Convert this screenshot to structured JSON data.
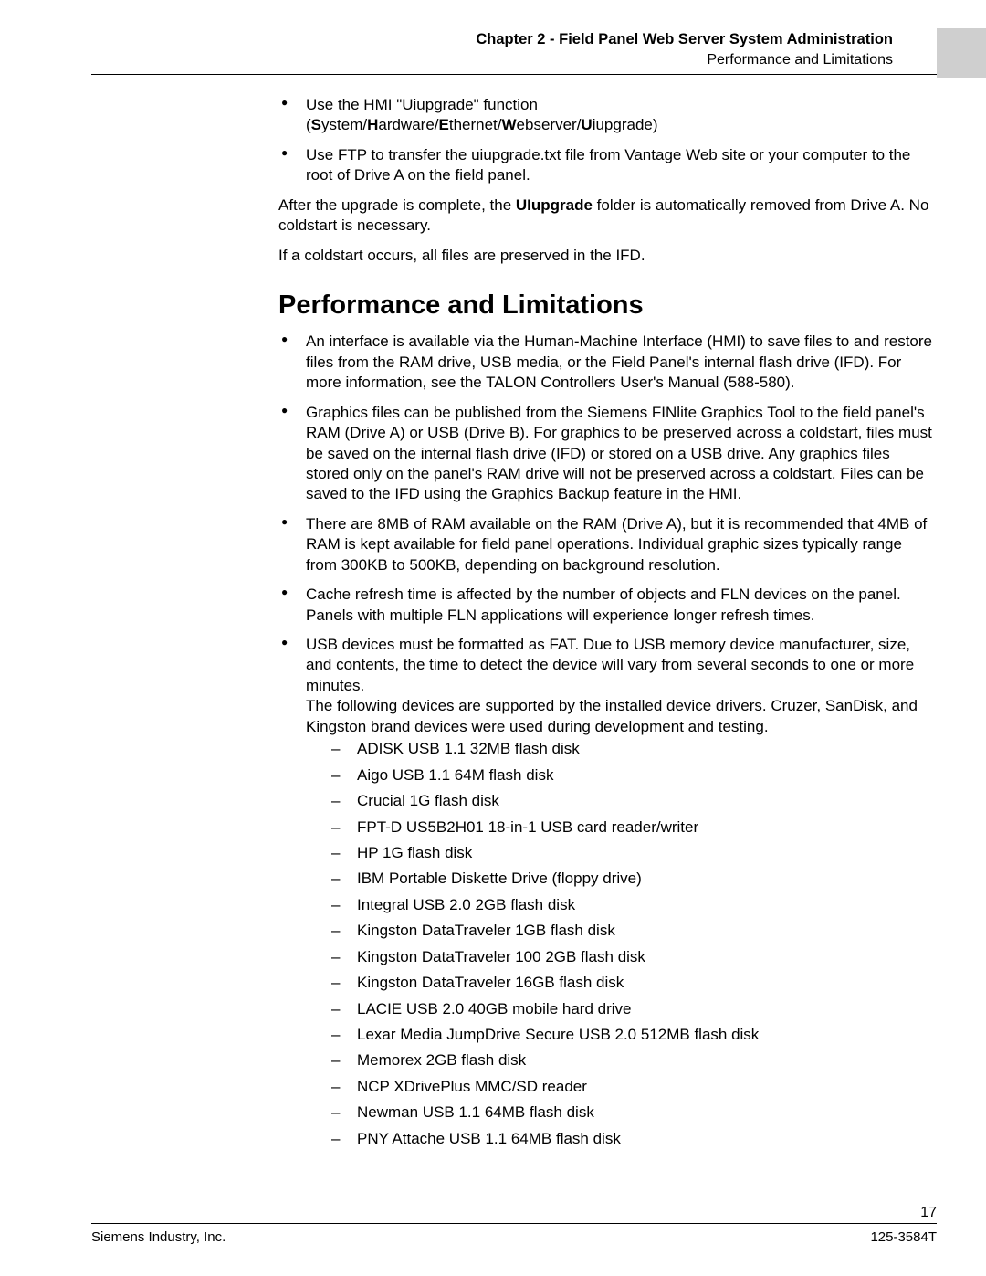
{
  "header": {
    "chapter": "Chapter 2 - Field Panel Web Server System Administration",
    "section": "Performance and Limitations"
  },
  "intro_bullets": [
    {
      "line1": "Use the HMI \"Uiupgrade\" function",
      "path_parts": [
        "S",
        "ystem/",
        "H",
        "ardware/",
        "E",
        "thernet/",
        "W",
        "ebserver/",
        "U",
        "iupgrade"
      ]
    },
    {
      "text": "Use FTP to transfer the uiupgrade.txt file from Vantage Web site or your computer to the root of Drive A on the field panel."
    }
  ],
  "after_upgrade": {
    "pre": "After the upgrade is complete, the ",
    "bold": "UIupgrade",
    "post": " folder is automatically removed from Drive A. No coldstart is necessary."
  },
  "coldstart_line": "If a coldstart occurs, all files are preserved in the IFD.",
  "section_title": "Performance and Limitations",
  "perf_bullets": [
    "An interface is available via the Human-Machine Interface (HMI) to save files to and restore files from the RAM drive, USB media, or the Field Panel's internal flash drive (IFD). For more information, see the TALON Controllers User's Manual (588-580).",
    "Graphics files can be published from the Siemens FINlite Graphics Tool to the field panel's RAM (Drive A) or USB (Drive B). For graphics to be preserved across a coldstart, files must be saved on the internal flash drive (IFD) or stored on a USB drive. Any graphics files stored only on the panel's RAM drive will not be preserved across a coldstart. Files can be saved to the IFD using the Graphics Backup feature in the HMI.",
    "There are 8MB of RAM available on the RAM (Drive A), but it is recommended that 4MB of RAM is kept available for field panel operations. Individual graphic sizes typically range from 300KB to 500KB, depending on background resolution.",
    "Cache refresh time is affected by the number of objects and FLN devices on the panel. Panels with multiple FLN applications will experience longer refresh times."
  ],
  "usb_bullet": {
    "para1": "USB devices must be formatted as FAT. Due to USB memory device manufacturer, size, and contents, the time to detect the device will vary from several seconds to one or more minutes.",
    "para2": "The following devices are supported by the installed device drivers. Cruzer, SanDisk, and Kingston brand devices were used during development and testing."
  },
  "devices": [
    "ADISK USB 1.1 32MB flash disk",
    "Aigo USB 1.1 64M flash disk",
    "Crucial 1G flash disk",
    "FPT-D US5B2H01 18-in-1 USB card reader/writer",
    "HP 1G flash disk",
    "IBM Portable Diskette Drive (floppy drive)",
    "Integral USB 2.0 2GB flash disk",
    "Kingston DataTraveler 1GB flash disk",
    "Kingston DataTraveler 100 2GB flash disk",
    "Kingston DataTraveler 16GB flash disk",
    "LACIE USB 2.0 40GB mobile hard drive",
    "Lexar Media JumpDrive Secure USB 2.0 512MB flash disk",
    "Memorex 2GB flash disk",
    "NCP XDrivePlus MMC/SD reader",
    "Newman USB 1.1 64MB flash disk",
    "PNY Attache USB 1.1 64MB flash disk"
  ],
  "footer": {
    "page_no": "17",
    "left": "Siemens Industry, Inc.",
    "right": "125-3584T"
  }
}
